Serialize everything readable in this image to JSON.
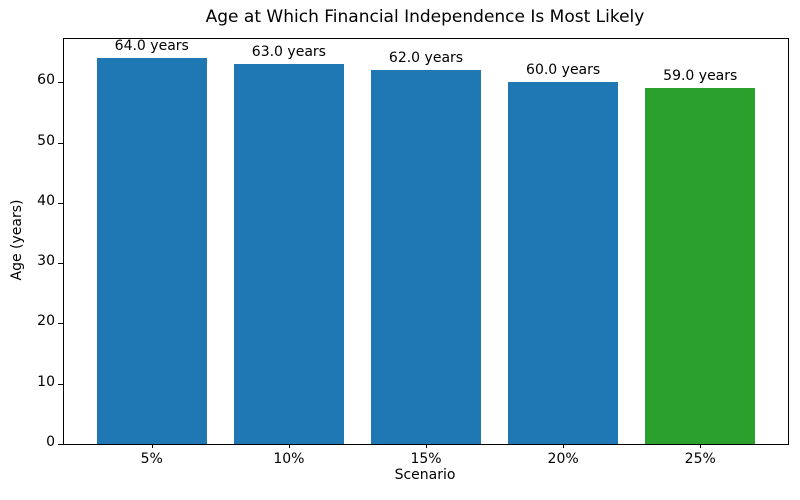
{
  "chart_data": {
    "type": "bar",
    "title": "Age at Which Financial Independence Is Most Likely",
    "xlabel": "Scenario",
    "ylabel": "Age (years)",
    "categories": [
      "5%",
      "10%",
      "15%",
      "20%",
      "25%"
    ],
    "values": [
      64.0,
      63.0,
      62.0,
      60.0,
      59.0
    ],
    "bar_labels": [
      "64.0 years",
      "63.0 years",
      "62.0 years",
      "60.0 years",
      "59.0 years"
    ],
    "bar_colors": [
      "#1f77b4",
      "#1f77b4",
      "#1f77b4",
      "#1f77b4",
      "#2ca02c"
    ],
    "highlight_color": "#2ca02c",
    "default_bar_color": "#1f77b4",
    "ylim": [
      0,
      67.2
    ],
    "yticks": [
      0,
      10,
      20,
      30,
      40,
      50,
      60
    ],
    "grid": false,
    "legend": null,
    "bar_width_fraction": 0.8,
    "x_margin_units": 0.64
  }
}
